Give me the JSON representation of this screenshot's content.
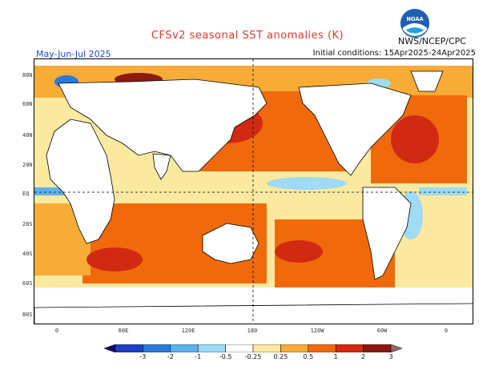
{
  "header": {
    "title": "CFSv2 seasonal SST anomalies (K)",
    "season": "May-Jun-Jul 2025",
    "initial_conditions": "Initial conditions: 15Apr2025-24Apr2025",
    "agency": "NWS/NCEP/CPC",
    "logo_text": "NOAA"
  },
  "map": {
    "lat_labels": [
      "80N",
      "60N",
      "40N",
      "20N",
      "EQ",
      "20S",
      "40S",
      "60S",
      "80S"
    ],
    "lon_labels": [
      "0",
      "60E",
      "120E",
      "180",
      "120W",
      "60W",
      "0"
    ],
    "reference_lines": [
      "EQ",
      "180"
    ]
  },
  "colorbar": {
    "ticks": [
      "-3",
      "-2",
      "-1",
      "-0.5",
      "-0.25",
      "0.25",
      "0.5",
      "1",
      "2",
      "3"
    ],
    "colors": [
      "#1a0070",
      "#1f3fc4",
      "#2a7ad9",
      "#5eb1ef",
      "#9fdaf7",
      "#ffffff",
      "#fbe9a0",
      "#f7ac38",
      "#f06a0c",
      "#d12a12",
      "#8b1a10",
      "#8a6b6b"
    ]
  },
  "colors": {
    "land": "#ffffff",
    "coast": "#000000",
    "title": "#e03a2a",
    "season": "#1a4fd8"
  }
}
